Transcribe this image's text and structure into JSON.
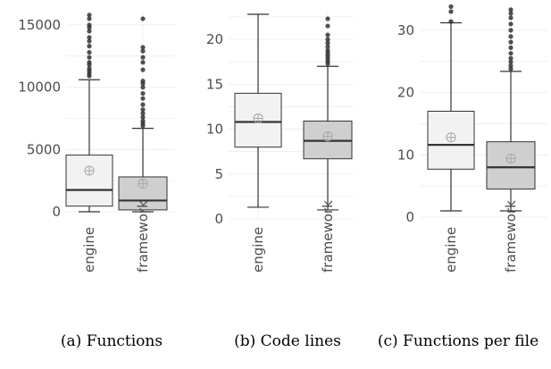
{
  "chart_data": [
    {
      "type": "boxplot",
      "caption": "(a) Functions",
      "categories": [
        "engine",
        "framework"
      ],
      "ylim": [
        0,
        16000
      ],
      "yticks": [
        0,
        5000,
        10000,
        15000
      ],
      "box_fills": [
        "#f2f2f2",
        "#cfcfcf"
      ],
      "series": [
        {
          "category": "engine",
          "whisker_low": 0,
          "q1": 450,
          "median": 1750,
          "q3": 4550,
          "whisker_high": 10600,
          "mean": 3300,
          "outliers": [
            10900,
            11100,
            11300,
            11500,
            11800,
            12000,
            12400,
            12800,
            13300,
            13700,
            14000,
            14500,
            14800,
            15000,
            15500,
            15800
          ]
        },
        {
          "category": "framework",
          "whisker_low": 0,
          "q1": 150,
          "median": 900,
          "q3": 2800,
          "whisker_high": 6700,
          "mean": 2250,
          "outliers": [
            6900,
            7100,
            7300,
            7600,
            7900,
            8200,
            8600,
            9100,
            9500,
            10000,
            10300,
            10500,
            11400,
            12000,
            12400,
            12900,
            13200,
            15500
          ]
        }
      ]
    },
    {
      "type": "boxplot",
      "caption": "(b) Code lines",
      "categories": [
        "engine",
        "framework"
      ],
      "ylim": [
        0,
        23
      ],
      "yticks": [
        0,
        5,
        10,
        15,
        20
      ],
      "box_fills": [
        "#f2f2f2",
        "#cfcfcf"
      ],
      "series": [
        {
          "category": "engine",
          "whisker_low": 1.3,
          "q1": 8.0,
          "median": 10.8,
          "q3": 14.0,
          "whisker_high": 22.8,
          "mean": 11.2,
          "outliers": []
        },
        {
          "category": "framework",
          "whisker_low": 1.0,
          "q1": 6.7,
          "median": 8.7,
          "q3": 10.9,
          "whisker_high": 17.0,
          "mean": 9.2,
          "outliers": [
            17.3,
            17.6,
            17.9,
            18.2,
            18.5,
            18.8,
            19.2,
            19.6,
            20.0,
            20.5,
            21.5,
            22.3
          ]
        }
      ]
    },
    {
      "type": "boxplot",
      "caption": "(c) Functions per file",
      "categories": [
        "engine",
        "framework"
      ],
      "ylim": [
        0,
        34
      ],
      "yticks": [
        0,
        10,
        20,
        30
      ],
      "box_fills": [
        "#f2f2f2",
        "#cfcfcf"
      ],
      "series": [
        {
          "category": "engine",
          "whisker_low": 1.0,
          "q1": 7.7,
          "median": 11.6,
          "q3": 17.0,
          "whisker_high": 31.2,
          "mean": 12.8,
          "outliers": [
            31.4,
            33.0,
            33.8
          ]
        },
        {
          "category": "framework",
          "whisker_low": 1.0,
          "q1": 4.5,
          "median": 8.0,
          "q3": 12.1,
          "whisker_high": 23.4,
          "mean": 9.4,
          "outliers": [
            23.8,
            24.3,
            24.9,
            25.5,
            26.3,
            27.2,
            28.1,
            29.0,
            30.0,
            31.0,
            32.0,
            32.7,
            33.3
          ]
        }
      ]
    }
  ]
}
